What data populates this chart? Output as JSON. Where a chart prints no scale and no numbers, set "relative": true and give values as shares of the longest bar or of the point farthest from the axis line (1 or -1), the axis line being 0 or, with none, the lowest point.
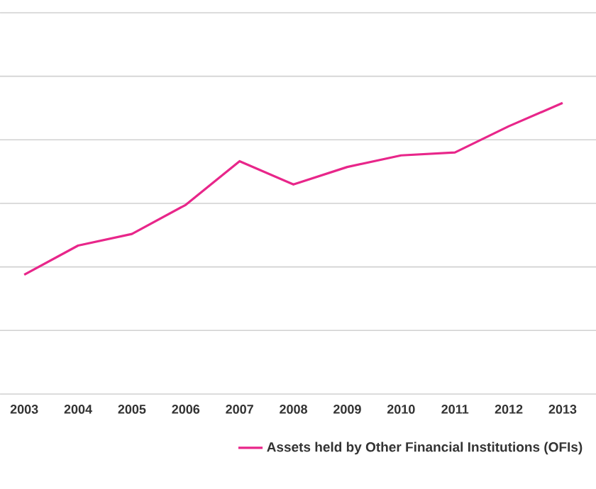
{
  "chart_data": {
    "type": "line",
    "relative": true,
    "categories": [
      "2003",
      "2004",
      "2005",
      "2006",
      "2007",
      "2008",
      "2009",
      "2010",
      "2011",
      "2012",
      "2013"
    ],
    "series": [
      {
        "name": "Assets held by Other Financial Institutions (OFIs)",
        "color": "#e8268a",
        "values": [
          0.41,
          0.51,
          0.55,
          0.65,
          0.8,
          0.72,
          0.78,
          0.82,
          0.83,
          0.92,
          1.0
        ]
      }
    ],
    "grid": "y",
    "legend": "bottom right",
    "marker": "none",
    "line_style": "solid"
  }
}
